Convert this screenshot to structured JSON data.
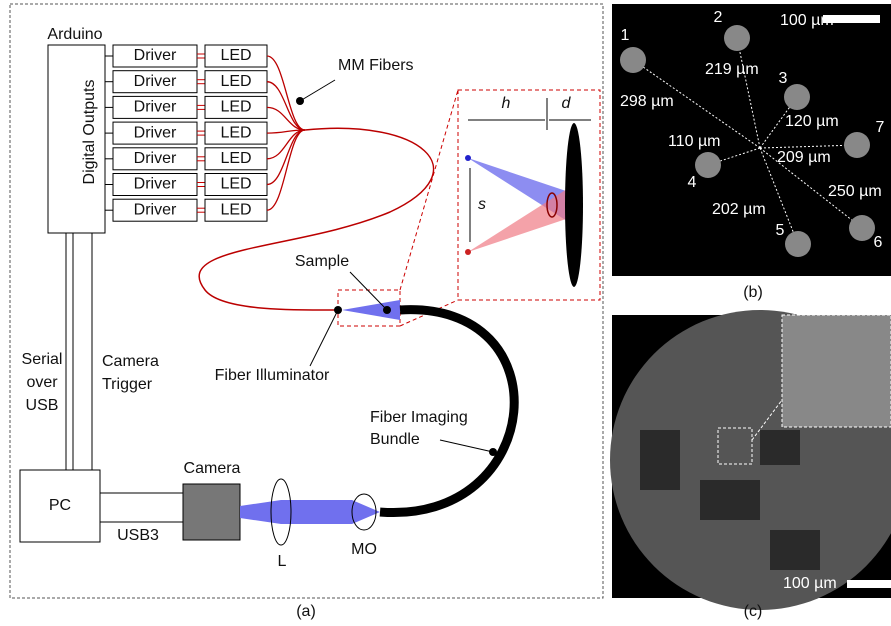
{
  "panel_a": {
    "label": "(a)",
    "arduino": "Arduino",
    "digital_outputs": "Digital Outputs",
    "drivers": [
      "Driver",
      "Driver",
      "Driver",
      "Driver",
      "Driver",
      "Driver",
      "Driver"
    ],
    "leds": [
      "LED",
      "LED",
      "LED",
      "LED",
      "LED",
      "LED",
      "LED"
    ],
    "mm_fibers": "MM Fibers",
    "inset": {
      "h": "h",
      "d": "d",
      "s": "s"
    },
    "sample": "Sample",
    "fiber_illuminator": "Fiber Illuminator",
    "serial_usb": [
      "Serial",
      "over",
      "USB"
    ],
    "camera_trigger": [
      "Camera",
      "Trigger"
    ],
    "fiber_imaging_bundle": [
      "Fiber Imaging",
      "Bundle"
    ],
    "camera": "Camera",
    "pc": "PC",
    "usb3": "USB3",
    "lens": "L",
    "objective": "MO"
  },
  "panel_b": {
    "label": "(b)",
    "scale_bar": "100 µm",
    "spots": [
      "1",
      "2",
      "3",
      "4",
      "5",
      "6",
      "7"
    ],
    "distances": [
      "298 µm",
      "219 µm",
      "120 µm",
      "110 µm",
      "209 µm",
      "250 µm",
      "202 µm"
    ]
  },
  "panel_c": {
    "label": "(c)",
    "scale_bar": "100 µm"
  }
}
